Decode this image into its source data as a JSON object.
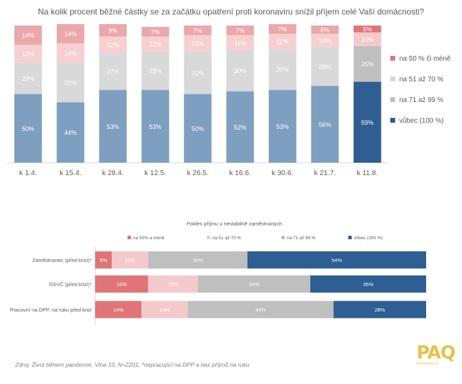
{
  "chart_data": [
    {
      "type": "bar",
      "stacked": true,
      "orientation": "vertical",
      "title": "Na kolik procent běžné částky se za začátku opatření proti koronaviru snížil příjem celé Vaší domácnosti?",
      "categories": [
        "k 1.4.",
        "k 15.4.",
        "k 28.4.",
        "k 12.5.",
        "k 26.5.",
        "k 16.6.",
        "k 30.6.",
        "k 21.7.",
        "k 11.8."
      ],
      "series": [
        {
          "name": "vůbec (100 %)",
          "values": [
            50,
            44,
            53,
            53,
            50,
            52,
            53,
            56,
            59
          ],
          "labels": [
            "50%",
            "44%",
            "53%",
            "53%",
            "50%",
            "52%",
            "53%",
            "56%",
            "59%"
          ]
        },
        {
          "name": "na 71 až 99 %",
          "values": [
            23,
            29,
            27,
            28,
            31,
            30,
            30,
            28,
            26
          ],
          "labels": [
            "23%",
            "29%",
            "27%",
            "28%",
            "31%",
            "30%",
            "30%",
            "28%",
            "26%"
          ]
        },
        {
          "name": "na 51 až 70 %",
          "values": [
            13,
            14,
            12,
            11,
            12,
            11,
            11,
            10,
            10
          ],
          "labels": [
            "13%",
            "14%",
            "12%",
            "11%",
            "12%",
            "11%",
            "11%",
            "10%",
            "10%"
          ]
        },
        {
          "name": "na 50 % či méně",
          "values": [
            14,
            14,
            9,
            7,
            7,
            7,
            7,
            6,
            5
          ],
          "labels": [
            "14%",
            "14%",
            "9%",
            "7%",
            "7%",
            "7%",
            "7%",
            "6%",
            "5%"
          ]
        }
      ],
      "colors_faded": [
        "#7f9fc0",
        "#d9d9d9",
        "#f6cfd0",
        "#eaa8ab"
      ],
      "colors_highlight": [
        "#2e5e92",
        "#bfbfbf",
        "#f4c9cb",
        "#e07577"
      ],
      "highlight_index": 8,
      "legend": [
        "na 50 % či méně",
        "na 51 až 70 %",
        "na 71 až 99 %",
        "vůbec (100 %)"
      ],
      "legend_position": "right",
      "ylim": [
        0,
        100
      ]
    },
    {
      "type": "bar",
      "stacked": true,
      "orientation": "horizontal",
      "title": "Pokles příjmu u nestabilně zaměstnaných",
      "categories": [
        "Zaměstnanec (před krizí)*",
        "OSVČ (před krizí)*",
        "Pracovní na DPP, na ruku před krizí"
      ],
      "series": [
        {
          "name": "na 50% a méně",
          "values": [
            5,
            16,
            14
          ],
          "labels": [
            "5%",
            "16%",
            "14%"
          ]
        },
        {
          "name": "na 51 až 70 %",
          "values": [
            11,
            15,
            14
          ],
          "labels": [
            "11%",
            "15%",
            "14%"
          ]
        },
        {
          "name": "na 71 až 99 %",
          "values": [
            30,
            34,
            44
          ],
          "labels": [
            "30%",
            "34%",
            "44%"
          ]
        },
        {
          "name": "vůbec (100 %)",
          "values": [
            54,
            35,
            28
          ],
          "labels": [
            "54%",
            "35%",
            "28%"
          ]
        }
      ],
      "colors": [
        "#e07577",
        "#f4c9cb",
        "#bfbfbf",
        "#2e5e92"
      ],
      "legend": [
        "na 50% a méně",
        "na 51 až 70 %",
        "na 71 až 99 %",
        "vůbec (100 %)"
      ],
      "legend_position": "top",
      "xlim": [
        0,
        100
      ]
    }
  ],
  "footer": {
    "source": "Zdroj: Život během pandemie, Vlna 10, N=2201; *nepracující na DPP a bez příjmů na ruku"
  },
  "logo": {
    "mark": "PAQ",
    "word": "RESEARCH"
  }
}
